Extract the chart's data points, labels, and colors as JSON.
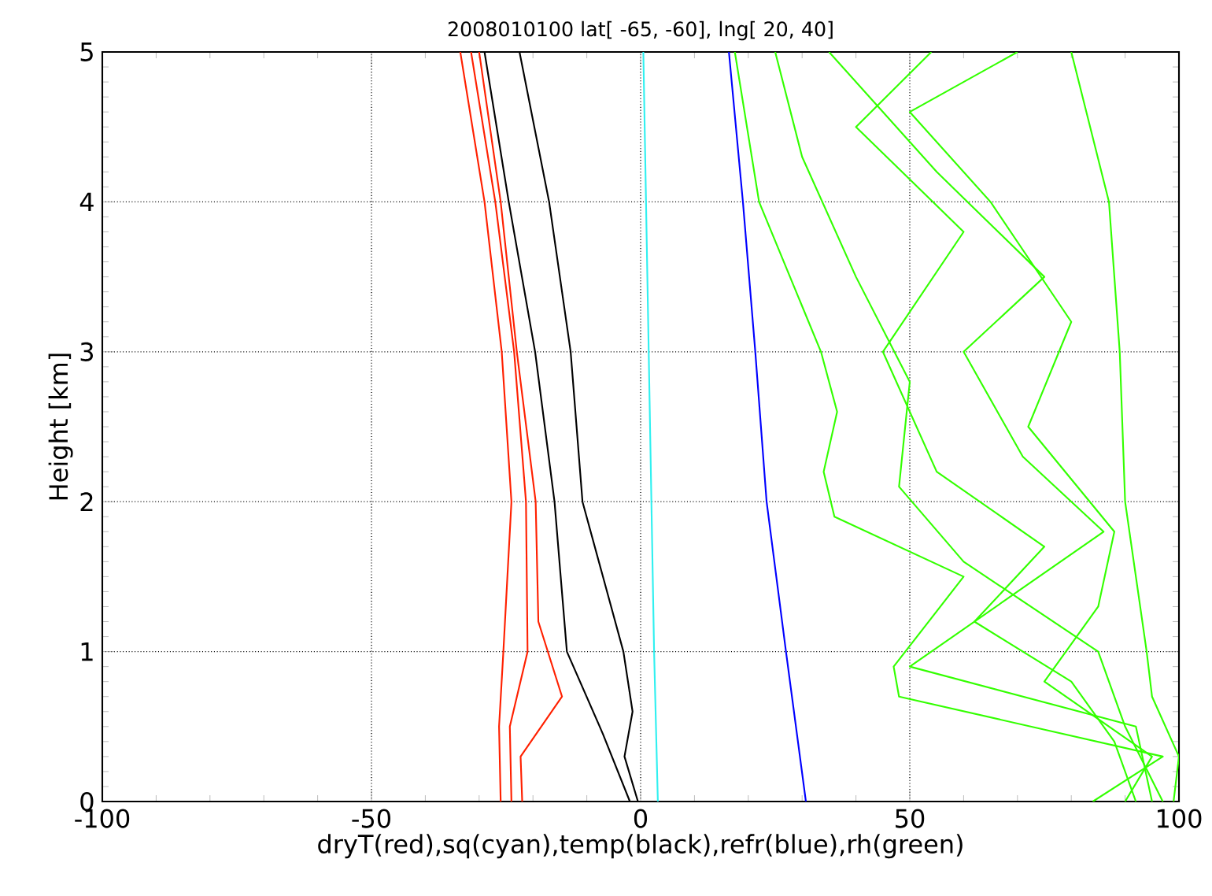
{
  "chart_data": {
    "type": "line",
    "title": "2008010100 lat[ -65, -60], lng[ 20, 40]",
    "xlabel": "dryT(red),sq(cyan),temp(black),refr(blue),rh(green)",
    "ylabel": "Height [km]",
    "xlim": [
      -100,
      100
    ],
    "ylim": [
      0,
      5
    ],
    "xticks": [
      -100,
      -50,
      0,
      50,
      100
    ],
    "yticks": [
      0,
      1,
      2,
      3,
      4,
      5
    ],
    "grid": true,
    "line_style": "solid",
    "marker": "none",
    "series": [
      {
        "color": "#ff2000",
        "x": [
          -26,
          -26.3,
          -25.5,
          -24,
          -25.8,
          -29,
          -33.5
        ],
        "values": [
          0,
          0.5,
          1,
          2,
          3,
          4,
          5
        ]
      },
      {
        "color": "#ff2000",
        "x": [
          -22,
          -22.3,
          -14.6,
          -19,
          -19.5,
          -23,
          -26,
          -30
        ],
        "values": [
          0,
          0.3,
          0.7,
          1.2,
          2,
          3,
          4,
          5
        ]
      },
      {
        "color": "#ff2000",
        "x": [
          -24,
          -24.3,
          -21,
          -21.3,
          -23.5,
          -27,
          -31.5
        ],
        "values": [
          0,
          0.5,
          1,
          2,
          3,
          4,
          5
        ]
      },
      {
        "color": "#000000",
        "x": [
          -0.5,
          -3,
          -1.5,
          -3.2,
          -10.8,
          -13,
          -17,
          -22.5
        ],
        "values": [
          0,
          0.3,
          0.6,
          1,
          2,
          3,
          4,
          5
        ]
      },
      {
        "color": "#000000",
        "x": [
          -2,
          -7,
          -13.7,
          -16,
          -19.6,
          -24.5,
          -29
        ],
        "values": [
          0,
          0.45,
          1,
          2,
          3,
          4,
          5
        ]
      },
      {
        "color": "#30f0f0",
        "x": [
          3.2,
          2.5,
          2,
          1.5,
          1,
          0.5
        ],
        "values": [
          0,
          1,
          2,
          3,
          4,
          5
        ]
      },
      {
        "color": "#0000ff",
        "x": [
          30.7,
          27,
          23.4,
          21.3,
          19,
          16.4
        ],
        "values": [
          0,
          1,
          2,
          3,
          4,
          5
        ]
      },
      {
        "color": "#33ff00",
        "x": [
          84,
          97,
          48,
          47,
          60,
          36,
          34,
          36.5,
          33.5,
          22,
          17.5
        ],
        "values": [
          0,
          0.3,
          0.7,
          0.9,
          1.5,
          1.9,
          2.2,
          2.6,
          3,
          4,
          5
        ]
      },
      {
        "color": "#33ff00",
        "x": [
          99,
          100,
          95,
          94,
          90,
          89,
          87,
          80
        ],
        "values": [
          0,
          0.3,
          0.7,
          1,
          2,
          3,
          4,
          5
        ]
      },
      {
        "color": "#33ff00",
        "x": [
          92,
          88,
          80,
          62,
          75,
          55,
          45,
          60,
          40,
          54
        ],
        "values": [
          0,
          0.4,
          0.8,
          1.2,
          1.7,
          2.2,
          3,
          3.8,
          4.5,
          5
        ]
      },
      {
        "color": "#33ff00",
        "x": [
          95,
          92,
          50,
          70,
          86,
          71,
          60,
          75,
          55,
          35
        ],
        "values": [
          0,
          0.5,
          0.9,
          1.4,
          1.8,
          2.3,
          3,
          3.5,
          4.2,
          5
        ]
      },
      {
        "color": "#33ff00",
        "x": [
          90,
          95,
          75,
          85,
          88,
          72,
          80,
          65,
          50,
          70
        ],
        "values": [
          0,
          0.3,
          0.8,
          1.3,
          1.8,
          2.5,
          3.2,
          4,
          4.6,
          5
        ]
      },
      {
        "color": "#33ff00",
        "x": [
          97,
          90,
          85,
          60,
          48,
          50,
          40,
          30,
          25
        ],
        "values": [
          0,
          0.5,
          1,
          1.6,
          2.1,
          2.8,
          3.5,
          4.3,
          5
        ]
      }
    ]
  }
}
